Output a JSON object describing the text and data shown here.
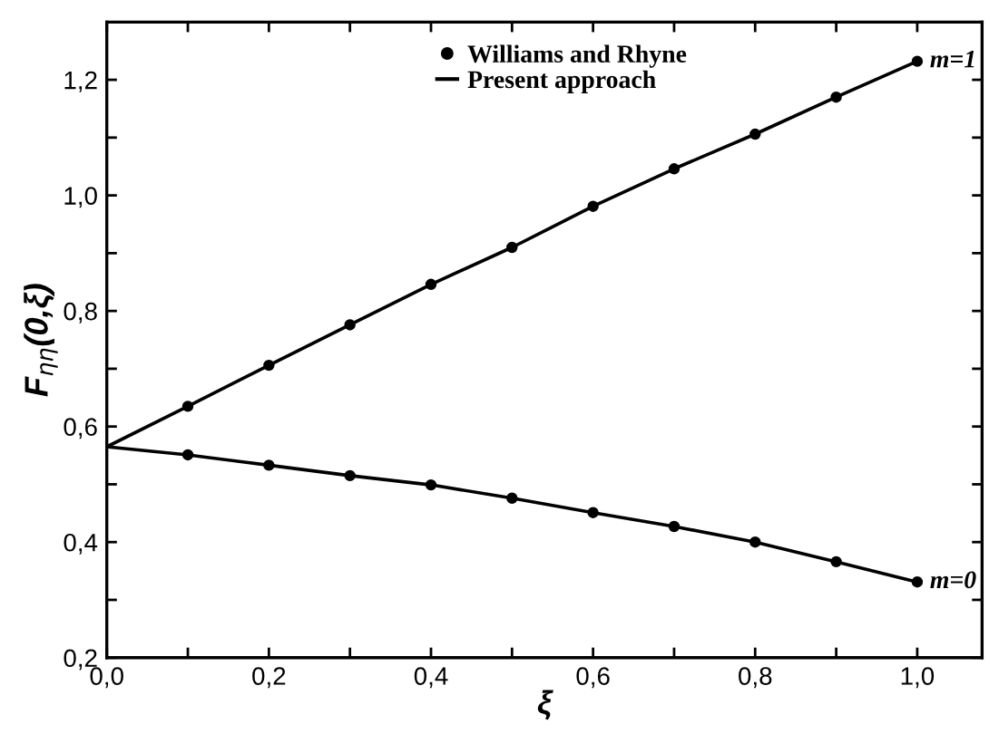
{
  "chart_data": {
    "type": "line",
    "xlabel": "ξ",
    "ylabel": "F$_{ηη}$(0,ξ)",
    "x": [
      0.0,
      0.1,
      0.2,
      0.3,
      0.4,
      0.5,
      0.6,
      0.7,
      0.8,
      0.9,
      1.0
    ],
    "series": [
      {
        "name": "Williams and Rhyne",
        "type": "scatter",
        "marker": "circle",
        "color": "#000000",
        "values": [
          null,
          0.635,
          0.706,
          0.776,
          0.846,
          0.91,
          0.981,
          1.046,
          1.106,
          1.17,
          1.232
        ]
      },
      {
        "type": "scatter",
        "marker": "circle",
        "color": "#000000",
        "values": [
          null,
          0.551,
          0.533,
          0.515,
          0.499,
          0.476,
          0.451,
          0.427,
          0.4,
          0.366,
          0.331
        ]
      },
      {
        "name": "Present approach",
        "line_style": "solid",
        "color": "#000000",
        "values": [
          0.565,
          0.635,
          0.706,
          0.776,
          0.846,
          0.91,
          0.981,
          1.046,
          1.106,
          1.17,
          1.232
        ]
      },
      {
        "line_style": "solid",
        "color": "#000000",
        "values": [
          0.565,
          0.551,
          0.533,
          0.515,
          0.499,
          0.476,
          0.451,
          0.427,
          0.4,
          0.366,
          0.331
        ]
      }
    ],
    "annotations": [
      {
        "text": "m=1",
        "x": 1.0,
        "y": 1.232
      },
      {
        "text": "m=0",
        "x": 1.0,
        "y": 0.331
      }
    ],
    "xlim": [
      0.0,
      1.08
    ],
    "ylim": [
      0.2,
      1.3
    ],
    "xticks": [
      {
        "value": 0.0,
        "label": "0,0"
      },
      {
        "value": 0.1,
        "label": null
      },
      {
        "value": 0.2,
        "label": "0,2"
      },
      {
        "value": 0.3,
        "label": null
      },
      {
        "value": 0.4,
        "label": "0,4"
      },
      {
        "value": 0.5,
        "label": null
      },
      {
        "value": 0.6,
        "label": "0,6"
      },
      {
        "value": 0.7,
        "label": null
      },
      {
        "value": 0.8,
        "label": "0,8"
      },
      {
        "value": 0.9,
        "label": null
      },
      {
        "value": 1.0,
        "label": "1,0"
      }
    ],
    "yticks": [
      {
        "value": 0.2,
        "label": "0,2"
      },
      {
        "value": 0.3,
        "label": null
      },
      {
        "value": 0.4,
        "label": "0,4"
      },
      {
        "value": 0.5,
        "label": null
      },
      {
        "value": 0.6,
        "label": "0,6"
      },
      {
        "value": 0.7,
        "label": null
      },
      {
        "value": 0.8,
        "label": "0,8"
      },
      {
        "value": 0.9,
        "label": null
      },
      {
        "value": 1.0,
        "label": "1,0"
      },
      {
        "value": 1.1,
        "label": null
      },
      {
        "value": 1.2,
        "label": "1,2"
      }
    ],
    "grid": false,
    "legend": "top"
  }
}
